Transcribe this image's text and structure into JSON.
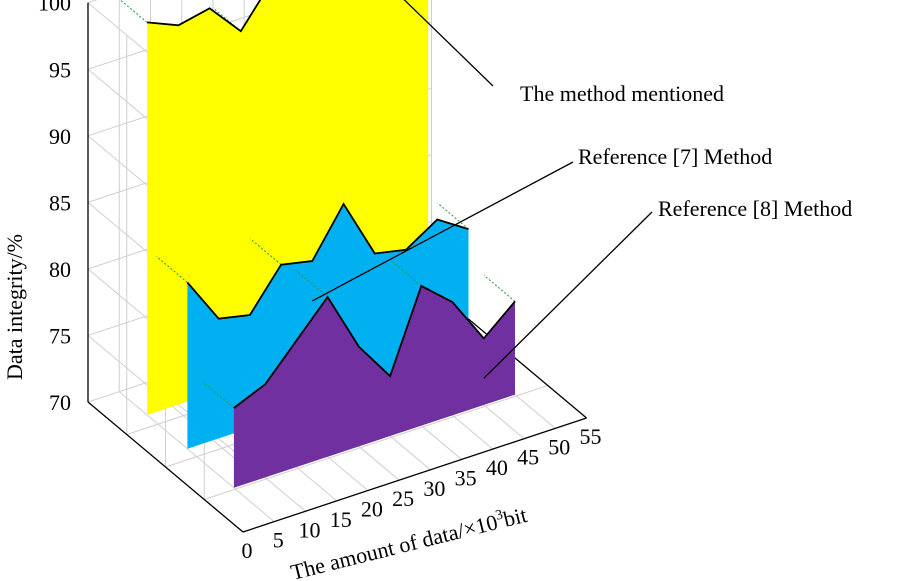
{
  "chart_data": {
    "type": "area",
    "x": [
      5,
      10,
      15,
      20,
      25,
      30,
      35,
      40,
      45,
      50
    ],
    "series": [
      {
        "name": "The method mentioned",
        "color": "#ffff00",
        "values": [
          99.5,
          98.5,
          99.0,
          96.5,
          99.5,
          97.5,
          97.0,
          97.5,
          98.5,
          98.0
        ]
      },
      {
        "name": "Reference [7] Method",
        "color": "#00b0f0",
        "values": [
          82.5,
          79.0,
          78.5,
          81.5,
          81.0,
          84.5,
          80.0,
          79.5,
          81.0,
          79.5
        ]
      },
      {
        "name": "Reference [8] Method",
        "color": "#7030a0",
        "values": [
          76.0,
          77.0,
          79.5,
          82.0,
          77.5,
          74.5,
          80.5,
          78.5,
          75.0,
          77.0
        ]
      }
    ],
    "xlabel_prefix": "The amount of data/×10",
    "xlabel_exp": "3",
    "xlabel_suffix": "bit",
    "ylabel": "Data integrity/%",
    "x_ticks": [
      "0",
      "5",
      "10",
      "15",
      "20",
      "25",
      "30",
      "35",
      "40",
      "45",
      "50",
      "55"
    ],
    "y_ticks": [
      "70",
      "75",
      "80",
      "85",
      "90",
      "95",
      "100"
    ],
    "xlim": [
      0,
      55
    ],
    "ylim": [
      70,
      100
    ],
    "grid": true
  }
}
